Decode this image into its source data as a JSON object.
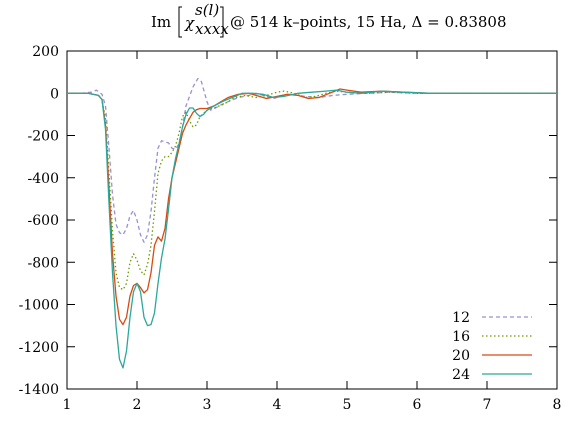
{
  "chart_data": {
    "type": "line",
    "title": {
      "prefix": "Im",
      "chi": "χ",
      "superscript": "s(l)",
      "subscript": "xxxx",
      "suffix": "@ 514 k–points, 15 Ha, Δ = 0.83808"
    },
    "xlabel": "",
    "ylabel": "",
    "xlim": [
      1,
      8
    ],
    "ylim": [
      -1400,
      200
    ],
    "xticks": [
      1,
      2,
      3,
      4,
      5,
      6,
      7,
      8
    ],
    "yticks": [
      200,
      0,
      -200,
      -400,
      -600,
      -800,
      -1000,
      -1200,
      -1400
    ],
    "grid": false,
    "legend_position": "bottom-right",
    "series": [
      {
        "name": "12",
        "color": "#9a8fd6",
        "dash": "dashed",
        "points": [
          [
            1.0,
            0
          ],
          [
            1.2,
            0
          ],
          [
            1.35,
            5
          ],
          [
            1.42,
            15
          ],
          [
            1.5,
            -5
          ],
          [
            1.55,
            -60
          ],
          [
            1.6,
            -260
          ],
          [
            1.65,
            -480
          ],
          [
            1.7,
            -620
          ],
          [
            1.75,
            -660
          ],
          [
            1.8,
            -670
          ],
          [
            1.85,
            -640
          ],
          [
            1.9,
            -580
          ],
          [
            1.95,
            -555
          ],
          [
            2.0,
            -600
          ],
          [
            2.05,
            -670
          ],
          [
            2.1,
            -705
          ],
          [
            2.15,
            -670
          ],
          [
            2.2,
            -560
          ],
          [
            2.25,
            -400
          ],
          [
            2.3,
            -260
          ],
          [
            2.35,
            -225
          ],
          [
            2.45,
            -235
          ],
          [
            2.5,
            -260
          ],
          [
            2.55,
            -265
          ],
          [
            2.6,
            -240
          ],
          [
            2.65,
            -160
          ],
          [
            2.7,
            -60
          ],
          [
            2.8,
            30
          ],
          [
            2.87,
            70
          ],
          [
            2.92,
            55
          ],
          [
            3.0,
            -40
          ],
          [
            3.05,
            -80
          ],
          [
            3.12,
            -70
          ],
          [
            3.2,
            -55
          ],
          [
            3.3,
            -40
          ],
          [
            3.45,
            -20
          ],
          [
            3.6,
            -10
          ],
          [
            3.7,
            0
          ],
          [
            3.8,
            -10
          ],
          [
            3.95,
            -25
          ],
          [
            4.05,
            -15
          ],
          [
            4.2,
            -5
          ],
          [
            4.4,
            -15
          ],
          [
            4.6,
            -20
          ],
          [
            4.8,
            -10
          ],
          [
            5.0,
            -5
          ],
          [
            5.3,
            0
          ],
          [
            5.6,
            5
          ],
          [
            6.0,
            0
          ],
          [
            7.0,
            0
          ],
          [
            8.0,
            0
          ]
        ]
      },
      {
        "name": "16",
        "color": "#6b9a00",
        "dash": "dotted",
        "points": [
          [
            1.0,
            0
          ],
          [
            1.3,
            0
          ],
          [
            1.45,
            -10
          ],
          [
            1.5,
            -30
          ],
          [
            1.55,
            -120
          ],
          [
            1.6,
            -380
          ],
          [
            1.65,
            -650
          ],
          [
            1.7,
            -850
          ],
          [
            1.75,
            -920
          ],
          [
            1.8,
            -930
          ],
          [
            1.85,
            -900
          ],
          [
            1.9,
            -800
          ],
          [
            1.95,
            -760
          ],
          [
            2.0,
            -790
          ],
          [
            2.05,
            -840
          ],
          [
            2.1,
            -860
          ],
          [
            2.15,
            -810
          ],
          [
            2.2,
            -720
          ],
          [
            2.25,
            -560
          ],
          [
            2.3,
            -380
          ],
          [
            2.35,
            -320
          ],
          [
            2.4,
            -300
          ],
          [
            2.45,
            -300
          ],
          [
            2.5,
            -280
          ],
          [
            2.55,
            -250
          ],
          [
            2.6,
            -190
          ],
          [
            2.65,
            -110
          ],
          [
            2.7,
            -90
          ],
          [
            2.75,
            -130
          ],
          [
            2.8,
            -160
          ],
          [
            2.85,
            -150
          ],
          [
            2.9,
            -110
          ],
          [
            3.0,
            -80
          ],
          [
            3.1,
            -70
          ],
          [
            3.25,
            -50
          ],
          [
            3.4,
            -20
          ],
          [
            3.55,
            -10
          ],
          [
            3.7,
            -20
          ],
          [
            3.85,
            -10
          ],
          [
            4.0,
            5
          ],
          [
            4.1,
            10
          ],
          [
            4.25,
            0
          ],
          [
            4.4,
            -20
          ],
          [
            4.55,
            -15
          ],
          [
            4.7,
            0
          ],
          [
            4.85,
            10
          ],
          [
            5.0,
            5
          ],
          [
            5.3,
            0
          ],
          [
            5.6,
            5
          ],
          [
            6.0,
            0
          ],
          [
            7.0,
            0
          ],
          [
            8.0,
            0
          ]
        ]
      },
      {
        "name": "20",
        "color": "#d94a10",
        "dash": "solid",
        "points": [
          [
            1.0,
            0
          ],
          [
            1.3,
            0
          ],
          [
            1.45,
            -10
          ],
          [
            1.5,
            -30
          ],
          [
            1.55,
            -150
          ],
          [
            1.6,
            -450
          ],
          [
            1.65,
            -760
          ],
          [
            1.7,
            -960
          ],
          [
            1.75,
            -1070
          ],
          [
            1.8,
            -1095
          ],
          [
            1.85,
            -1060
          ],
          [
            1.9,
            -960
          ],
          [
            1.95,
            -910
          ],
          [
            2.0,
            -900
          ],
          [
            2.05,
            -920
          ],
          [
            2.1,
            -945
          ],
          [
            2.15,
            -930
          ],
          [
            2.2,
            -850
          ],
          [
            2.25,
            -720
          ],
          [
            2.3,
            -680
          ],
          [
            2.35,
            -700
          ],
          [
            2.4,
            -640
          ],
          [
            2.45,
            -500
          ],
          [
            2.5,
            -400
          ],
          [
            2.55,
            -330
          ],
          [
            2.6,
            -260
          ],
          [
            2.65,
            -190
          ],
          [
            2.7,
            -150
          ],
          [
            2.75,
            -120
          ],
          [
            2.8,
            -90
          ],
          [
            2.85,
            -78
          ],
          [
            2.9,
            -72
          ],
          [
            3.0,
            -72
          ],
          [
            3.1,
            -60
          ],
          [
            3.2,
            -40
          ],
          [
            3.3,
            -20
          ],
          [
            3.45,
            -5
          ],
          [
            3.6,
            0
          ],
          [
            3.7,
            -10
          ],
          [
            3.85,
            -25
          ],
          [
            4.0,
            -15
          ],
          [
            4.15,
            -5
          ],
          [
            4.3,
            -10
          ],
          [
            4.45,
            -25
          ],
          [
            4.6,
            -20
          ],
          [
            4.75,
            0
          ],
          [
            4.9,
            20
          ],
          [
            5.0,
            15
          ],
          [
            5.2,
            5
          ],
          [
            5.5,
            10
          ],
          [
            5.8,
            5
          ],
          [
            6.2,
            0
          ],
          [
            7.0,
            0
          ],
          [
            8.0,
            0
          ]
        ]
      },
      {
        "name": "24",
        "color": "#2ca79a",
        "dash": "solid",
        "points": [
          [
            1.0,
            0
          ],
          [
            1.3,
            0
          ],
          [
            1.45,
            -10
          ],
          [
            1.5,
            -30
          ],
          [
            1.55,
            -170
          ],
          [
            1.6,
            -520
          ],
          [
            1.65,
            -850
          ],
          [
            1.7,
            -1100
          ],
          [
            1.75,
            -1260
          ],
          [
            1.8,
            -1300
          ],
          [
            1.85,
            -1220
          ],
          [
            1.9,
            -1060
          ],
          [
            1.95,
            -940
          ],
          [
            2.0,
            -900
          ],
          [
            2.05,
            -940
          ],
          [
            2.1,
            -1060
          ],
          [
            2.15,
            -1100
          ],
          [
            2.2,
            -1095
          ],
          [
            2.25,
            -1040
          ],
          [
            2.3,
            -900
          ],
          [
            2.35,
            -780
          ],
          [
            2.4,
            -690
          ],
          [
            2.45,
            -550
          ],
          [
            2.5,
            -400
          ],
          [
            2.55,
            -310
          ],
          [
            2.6,
            -240
          ],
          [
            2.65,
            -160
          ],
          [
            2.7,
            -100
          ],
          [
            2.75,
            -70
          ],
          [
            2.8,
            -70
          ],
          [
            2.85,
            -95
          ],
          [
            2.9,
            -110
          ],
          [
            2.95,
            -100
          ],
          [
            3.0,
            -80
          ],
          [
            3.1,
            -60
          ],
          [
            3.25,
            -35
          ],
          [
            3.4,
            -15
          ],
          [
            3.5,
            0
          ],
          [
            3.65,
            0
          ],
          [
            3.8,
            -5
          ],
          [
            3.95,
            -20
          ],
          [
            4.1,
            -15
          ],
          [
            4.3,
            0
          ],
          [
            4.5,
            5
          ],
          [
            4.7,
            10
          ],
          [
            4.85,
            15
          ],
          [
            5.0,
            5
          ],
          [
            5.2,
            0
          ],
          [
            5.5,
            10
          ],
          [
            5.8,
            5
          ],
          [
            6.2,
            0
          ],
          [
            7.0,
            0
          ],
          [
            8.0,
            0
          ]
        ]
      }
    ]
  }
}
